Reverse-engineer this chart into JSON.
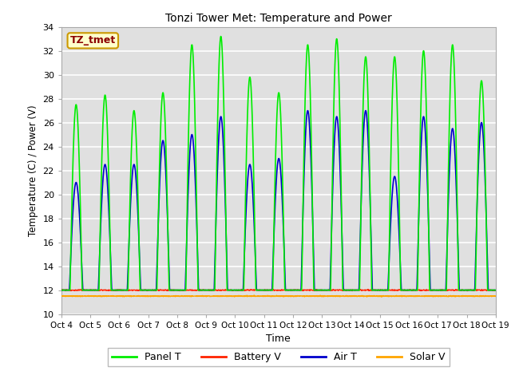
{
  "title": "Tonzi Tower Met: Temperature and Power",
  "xlabel": "Time",
  "ylabel": "Temperature (C) / Power (V)",
  "ylim": [
    10,
    34
  ],
  "yticks": [
    10,
    12,
    14,
    16,
    18,
    20,
    22,
    24,
    26,
    28,
    30,
    32,
    34
  ],
  "x_tick_labels": [
    "Oct 4",
    "Oct 5",
    "Oct 6",
    "Oct 7",
    "Oct 8",
    "Oct 9",
    "Oct 10",
    "Oct 11",
    "Oct 12",
    "Oct 13",
    "Oct 14",
    "Oct 15",
    "Oct 16",
    "Oct 17",
    "Oct 18",
    "Oct 19"
  ],
  "annotation_text": "TZ_tmet",
  "annotation_color": "#8B0000",
  "annotation_bg": "#FFFFCC",
  "bg_color": "#E0E0E0",
  "panel_color": "#00EE00",
  "battery_color": "#FF2200",
  "air_color": "#0000CC",
  "solar_color": "#FFA500",
  "legend_labels": [
    "Panel T",
    "Battery V",
    "Air T",
    "Solar V"
  ],
  "panel_peaks": [
    27.5,
    28.3,
    27.0,
    28.5,
    32.5,
    33.2,
    29.8,
    28.5,
    32.5,
    33.0,
    31.5,
    31.5,
    32.0,
    32.5,
    29.5
  ],
  "air_peaks": [
    21.0,
    22.5,
    22.5,
    24.5,
    25.0,
    26.5,
    22.5,
    23.0,
    27.0,
    26.5,
    27.0,
    21.5,
    26.5,
    25.5,
    26.0
  ],
  "battery_base": 12.0,
  "solar_base": 11.5,
  "n_days": 15,
  "n_per_day": 144
}
